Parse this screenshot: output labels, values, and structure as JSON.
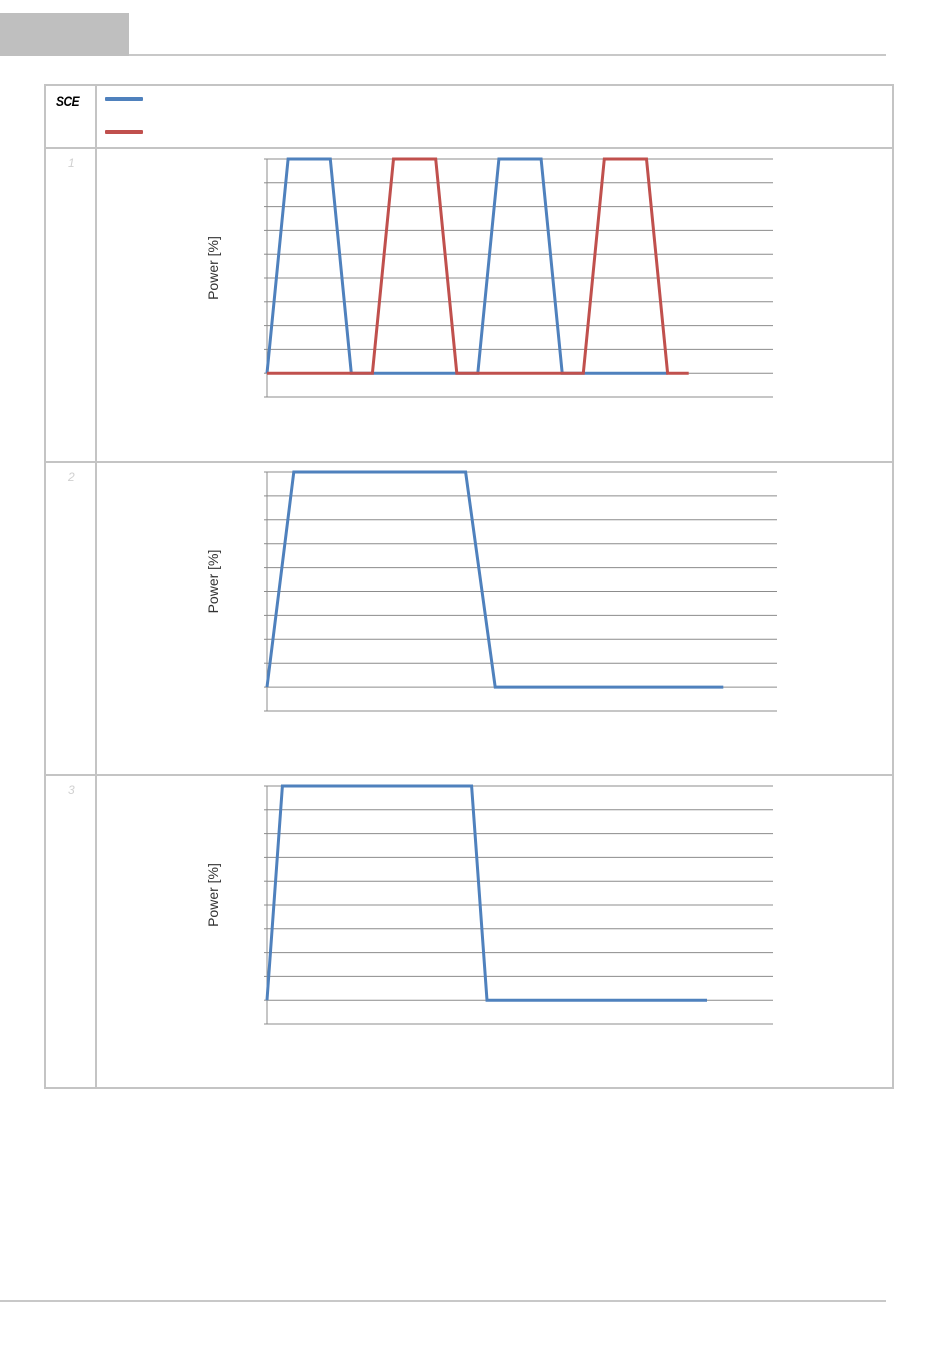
{
  "header": {
    "tab_color": "#bfbfbf",
    "rule_color": "#c8c8c8"
  },
  "legend": {
    "label": "SCE",
    "entries": [
      {
        "color": "#4f81bd",
        "text": ""
      },
      {
        "color": "#c0504d",
        "text": ""
      }
    ]
  },
  "rows": [
    {
      "number": "1"
    },
    {
      "number": "2"
    },
    {
      "number": "3"
    }
  ],
  "chart_data": [
    {
      "type": "line",
      "ylabel": "Power [%]",
      "xlabel": "",
      "ylim": [
        0,
        10
      ],
      "xlim": [
        0,
        24
      ],
      "grid": true,
      "series": [
        {
          "color": "#4f81bd",
          "x": [
            0,
            1,
            3,
            4,
            10,
            11,
            13,
            14,
            19
          ],
          "y": [
            1,
            10,
            10,
            1,
            1,
            10,
            10,
            1,
            1
          ]
        },
        {
          "color": "#c0504d",
          "x": [
            0,
            5,
            6,
            8,
            9,
            15,
            16,
            18,
            19,
            20
          ],
          "y": [
            1,
            1,
            10,
            10,
            1,
            1,
            10,
            10,
            1,
            1
          ]
        }
      ]
    },
    {
      "type": "line",
      "ylabel": "Power [%]",
      "xlabel": "",
      "ylim": [
        0,
        10
      ],
      "xlim": [
        0,
        19
      ],
      "grid": true,
      "series": [
        {
          "color": "#4f81bd",
          "x": [
            0,
            1,
            7.4,
            8.5,
            17
          ],
          "y": [
            1,
            10,
            10,
            1,
            1
          ]
        }
      ]
    },
    {
      "type": "line",
      "ylabel": "Power [%]",
      "xlabel": "",
      "ylim": [
        0,
        10
      ],
      "xlim": [
        0,
        23
      ],
      "grid": true,
      "series": [
        {
          "color": "#4f81bd",
          "x": [
            0,
            0.7,
            9.3,
            10,
            20
          ],
          "y": [
            1,
            10,
            10,
            1,
            1
          ]
        }
      ]
    }
  ]
}
